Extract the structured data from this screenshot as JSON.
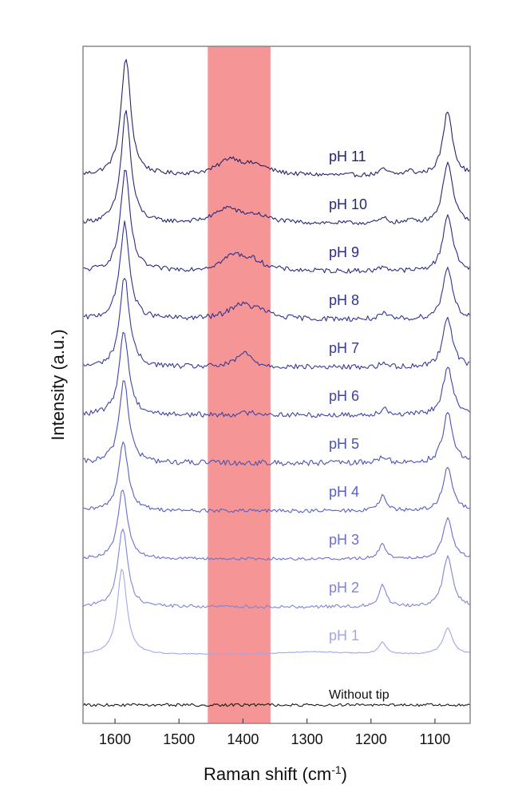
{
  "chart_data": {
    "type": "line",
    "title": "",
    "xlabel_main": "Raman shift (cm",
    "xlabel_sup": "-1",
    "xlabel_close": ")",
    "ylabel": "Intensity (a.u.)",
    "xlim": [
      1650,
      1045
    ],
    "x_reversed": true,
    "x_ticks": [
      1600,
      1500,
      1400,
      1300,
      1200,
      1100
    ],
    "y_ticks": [],
    "grid": false,
    "highlight_band": {
      "from": 1455,
      "to": 1357,
      "color": "#f48a8a"
    },
    "series": [
      {
        "name": "pH 11",
        "color": "#24246b",
        "baseline": 11,
        "noise": 0.045,
        "peaks": [
          [
            1583,
            9,
            2.45
          ],
          [
            1420,
            22,
            0.32
          ],
          [
            1380,
            25,
            0.18
          ],
          [
            1180,
            7,
            0.12
          ],
          [
            1140,
            6,
            0.09
          ],
          [
            1080,
            9,
            1.35
          ]
        ]
      },
      {
        "name": "pH 10",
        "color": "#26287a",
        "baseline": 10,
        "noise": 0.045,
        "peaks": [
          [
            1583,
            9,
            2.35
          ],
          [
            1425,
            22,
            0.3
          ],
          [
            1380,
            25,
            0.15
          ],
          [
            1180,
            7,
            0.1
          ],
          [
            1135,
            6,
            0.07
          ],
          [
            1080,
            9,
            1.3
          ]
        ]
      },
      {
        "name": "pH 9",
        "color": "#2a2c85",
        "baseline": 9,
        "noise": 0.05,
        "peaks": [
          [
            1584,
            9,
            2.1
          ],
          [
            1415,
            22,
            0.3
          ],
          [
            1385,
            22,
            0.18
          ],
          [
            1180,
            7,
            0.1
          ],
          [
            1080,
            9,
            1.2
          ]
        ]
      },
      {
        "name": "pH 8",
        "color": "#30338f",
        "baseline": 8,
        "noise": 0.055,
        "peaks": [
          [
            1585,
            9,
            2.0
          ],
          [
            1405,
            20,
            0.28
          ],
          [
            1375,
            20,
            0.15
          ],
          [
            1180,
            7,
            0.1
          ],
          [
            1080,
            9,
            1.1
          ]
        ]
      },
      {
        "name": "pH 7",
        "color": "#363b98",
        "baseline": 7,
        "noise": 0.055,
        "peaks": [
          [
            1585,
            9,
            1.9
          ],
          [
            1398,
            14,
            0.3
          ],
          [
            1180,
            7,
            0.08
          ],
          [
            1080,
            9,
            1.05
          ]
        ]
      },
      {
        "name": "pH 6",
        "color": "#3e44a5",
        "baseline": 6,
        "noise": 0.055,
        "peaks": [
          [
            1586,
            9,
            1.75
          ],
          [
            1385,
            20,
            0.05
          ],
          [
            1180,
            7,
            0.15
          ],
          [
            1080,
            9,
            1.0
          ]
        ]
      },
      {
        "name": "pH 5",
        "color": "#4a52b5",
        "baseline": 5,
        "noise": 0.06,
        "peaks": [
          [
            1586,
            9,
            1.75
          ],
          [
            1182,
            7,
            0.15
          ],
          [
            1080,
            9,
            1.05
          ]
        ]
      },
      {
        "name": "pH 4",
        "color": "#585fc2",
        "baseline": 4,
        "noise": 0.04,
        "peaks": [
          [
            1587,
            9,
            1.45
          ],
          [
            1182,
            7,
            0.3
          ],
          [
            1080,
            9,
            0.9
          ]
        ]
      },
      {
        "name": "pH 3",
        "color": "#6a70cf",
        "baseline": 3,
        "noise": 0.03,
        "peaks": [
          [
            1588,
            9,
            1.45
          ],
          [
            1182,
            7,
            0.3
          ],
          [
            1080,
            9,
            0.85
          ]
        ]
      },
      {
        "name": "pH 2",
        "color": "#7e84d9",
        "baseline": 2,
        "noise": 0.035,
        "peaks": [
          [
            1588,
            9,
            1.65
          ],
          [
            1182,
            7,
            0.45
          ],
          [
            1080,
            9,
            1.05
          ]
        ]
      },
      {
        "name": "pH 1",
        "color": "#a3a7ea",
        "baseline": 1,
        "noise": 0.01,
        "peaks": [
          [
            1589,
            9,
            1.8
          ],
          [
            1290,
            60,
            0.06
          ],
          [
            1182,
            7,
            0.25
          ],
          [
            1080,
            9,
            0.55
          ]
        ]
      },
      {
        "name": "Without tip",
        "color": "#1a1a1a",
        "baseline": -0.05,
        "noise": 0.03,
        "peaks": []
      }
    ]
  }
}
